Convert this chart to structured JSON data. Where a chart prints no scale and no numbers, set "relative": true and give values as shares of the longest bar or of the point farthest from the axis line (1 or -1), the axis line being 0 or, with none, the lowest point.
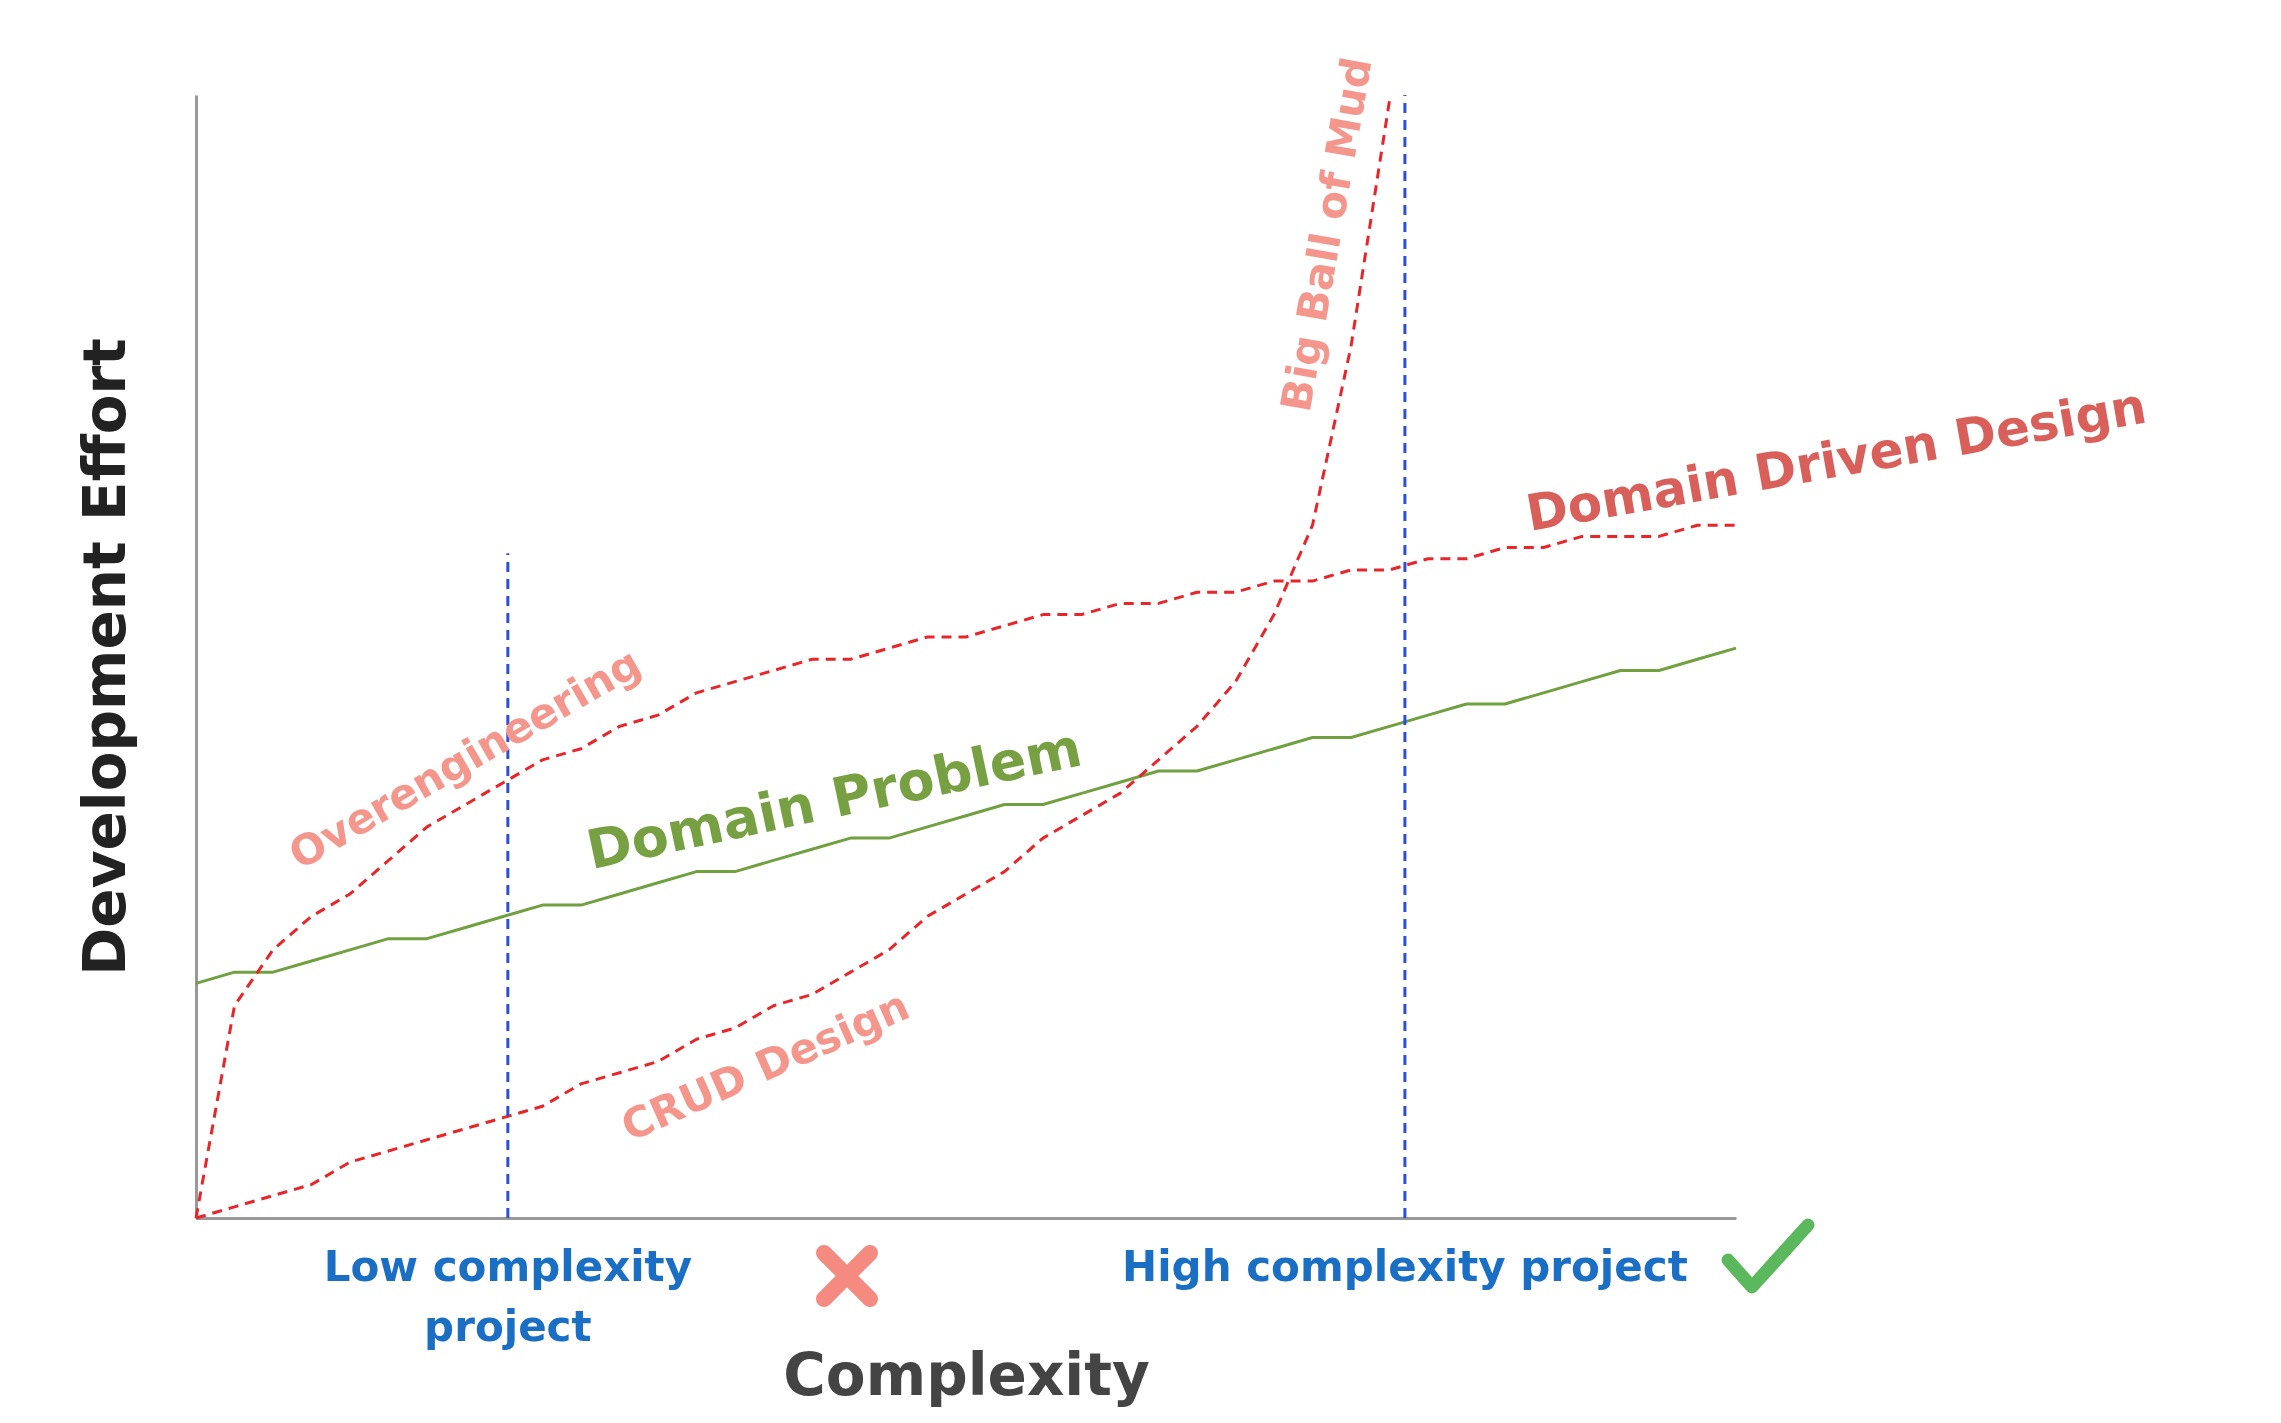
{
  "chart_data": {
    "type": "line",
    "relative": true,
    "xlabel": "Complexity",
    "ylabel": "Development Effort",
    "legend": false,
    "grid": false,
    "marker": "none",
    "categories": [
      null,
      null,
      null,
      null,
      null,
      null,
      null,
      null,
      null,
      null,
      null,
      null,
      null,
      null,
      null,
      null,
      null,
      null,
      null,
      null,
      null,
      null,
      null,
      null,
      null,
      null,
      null,
      null,
      null,
      null,
      null,
      null,
      null,
      null,
      null,
      null,
      null,
      null,
      null,
      null,
      null
    ],
    "series": [
      {
        "name": "Domain Problem",
        "color": "#70a040",
        "line_style": "solid",
        "values": [
          0.21,
          0.22,
          0.22,
          0.23,
          0.24,
          0.25,
          0.25,
          0.26,
          0.27,
          0.28,
          0.28,
          0.29,
          0.3,
          0.31,
          0.31,
          0.32,
          0.33,
          0.34,
          0.34,
          0.35,
          0.36,
          0.37,
          0.37,
          0.38,
          0.39,
          0.4,
          0.4,
          0.41,
          0.42,
          0.43,
          0.43,
          0.44,
          0.45,
          0.46,
          0.46,
          0.47,
          0.48,
          0.49,
          0.49,
          0.5,
          0.51
        ]
      },
      {
        "name": "Domain Driven Design",
        "color": "#e8262a",
        "line_style": "dashed",
        "values": [
          0,
          0.19,
          0.24,
          0.27,
          0.29,
          0.32,
          0.35,
          0.37,
          0.39,
          0.41,
          0.42,
          0.44,
          0.45,
          0.47,
          0.48,
          0.49,
          0.5,
          0.5,
          0.51,
          0.52,
          0.52,
          0.53,
          0.54,
          0.54,
          0.55,
          0.55,
          0.56,
          0.56,
          0.57,
          0.57,
          0.58,
          0.58,
          0.59,
          0.59,
          0.6,
          0.6,
          0.61,
          0.61,
          0.61,
          0.62,
          0.62
        ]
      },
      {
        "color": "#e8262a",
        "line_style": "dashed",
        "values": [
          0,
          0.01,
          0.02,
          0.03,
          0.05,
          0.06,
          0.07,
          0.08,
          0.09,
          0.1,
          0.12,
          0.13,
          0.14,
          0.16,
          0.17,
          0.19,
          0.2,
          0.22,
          0.24,
          0.27,
          0.29,
          0.31,
          0.34,
          0.36,
          0.38,
          0.41,
          0.44,
          0.48,
          0.54,
          0.62,
          0.78,
          1,
          null,
          null,
          null,
          null,
          null,
          null,
          null,
          null,
          null
        ]
      }
    ],
    "annotations": [
      "Overengineering",
      "CRUD Design",
      "Big Ball of Mud",
      "Low complexity project",
      "High complexity project"
    ]
  }
}
